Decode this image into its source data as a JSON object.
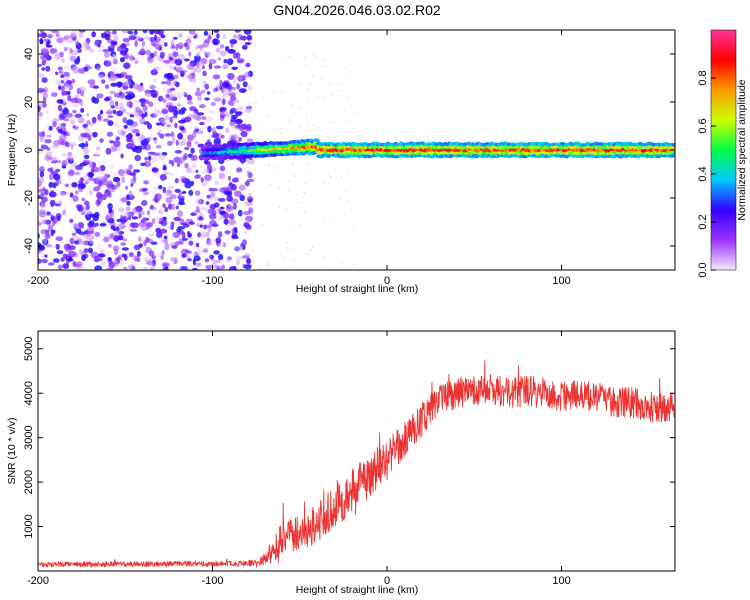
{
  "figure_title": "GN04.2026.046.03.02.R02",
  "chart_data": [
    {
      "type": "heatmap",
      "xlabel": "Height of straight line (km)",
      "ylabel": "Frequency (Hz)",
      "xlim": [
        -200,
        165
      ],
      "ylim": [
        -50,
        50
      ],
      "xticks": [
        -200,
        -100,
        0,
        100
      ],
      "xtick_labels": [
        "-200",
        "-100",
        "0",
        "100"
      ],
      "yticks": [
        -40,
        -20,
        0,
        20,
        40
      ],
      "ytick_labels": [
        "-40",
        "-20",
        "0",
        "20",
        "40"
      ],
      "noise_region_x": [
        -200,
        -78
      ],
      "signal_band_center_hz": 0,
      "signal_band_halfwidth_hz": 3,
      "colorbar": {
        "label": "Normalized spectral amplitude",
        "range": [
          0,
          1
        ],
        "ticks": [
          0.0,
          0.2,
          0.4,
          0.6,
          0.8
        ],
        "tick_labels": [
          "0.0",
          "0.2",
          "0.4",
          "0.6",
          "0.8"
        ],
        "colors": [
          "#f6e8ff",
          "#9a33ff",
          "#3300ff",
          "#00c8ff",
          "#00ff44",
          "#ccff00",
          "#ff9900",
          "#ff0000",
          "#ff3399"
        ]
      }
    },
    {
      "type": "line",
      "xlabel": "Height of straight line (km)",
      "ylabel": "SNR (10 * v/v)",
      "xlim": [
        -200,
        165
      ],
      "ylim": [
        0,
        5400
      ],
      "xticks": [
        -200,
        -100,
        0,
        100
      ],
      "xtick_labels": [
        "-200",
        "-100",
        "0",
        "100"
      ],
      "yticks": [
        1000,
        2000,
        3000,
        4000,
        5000
      ],
      "ytick_labels": [
        "1000",
        "2000",
        "3000",
        "4000",
        "5000"
      ],
      "color": "#ee3333",
      "series": [
        {
          "name": "SNR",
          "x": [
            -200,
            -180,
            -160,
            -140,
            -120,
            -100,
            -85,
            -75,
            -70,
            -65,
            -60,
            -55,
            -50,
            -45,
            -40,
            -35,
            -30,
            -25,
            -20,
            -15,
            -10,
            -5,
            0,
            5,
            10,
            15,
            20,
            25,
            30,
            40,
            50,
            60,
            70,
            80,
            90,
            100,
            110,
            120,
            130,
            140,
            150,
            160,
            165
          ],
          "y": [
            150,
            150,
            150,
            155,
            160,
            160,
            170,
            190,
            250,
            500,
            750,
            780,
            900,
            950,
            1100,
            1250,
            1450,
            1600,
            1800,
            2000,
            2150,
            2350,
            2550,
            2750,
            2950,
            3200,
            3400,
            3650,
            3850,
            4000,
            4050,
            4100,
            4000,
            4050,
            4000,
            3950,
            3950,
            3900,
            3800,
            3800,
            3700,
            3650,
            3700
          ],
          "noise_amplitude": [
            60,
            60,
            60,
            60,
            60,
            60,
            60,
            80,
            150,
            300,
            400,
            400,
            420,
            420,
            440,
            460,
            480,
            500,
            500,
            500,
            500,
            450,
            450,
            400,
            400,
            400,
            400,
            350,
            350,
            350,
            350,
            350,
            350,
            350,
            350,
            350,
            350,
            350,
            350,
            350,
            350,
            350,
            350
          ]
        }
      ]
    }
  ]
}
